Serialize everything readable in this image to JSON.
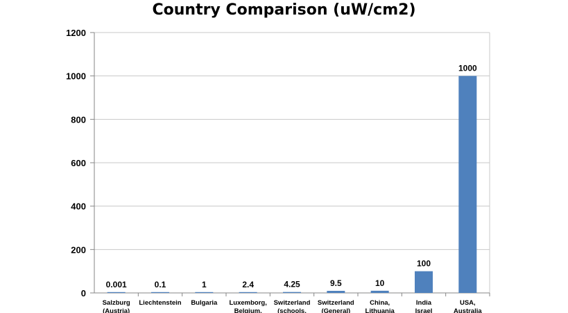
{
  "chart_data": {
    "type": "bar",
    "title": "Country Comparison (uW/cm2)",
    "xlabel": "",
    "ylabel": "",
    "ylim": [
      0,
      1200
    ],
    "yticks": [
      0,
      200,
      400,
      600,
      800,
      1000,
      1200
    ],
    "grid": true,
    "legend": "none",
    "bar_color": "#4f81bd",
    "categories": [
      [
        "Salzburg",
        "(Austria)"
      ],
      [
        "Liechtenstein"
      ],
      [
        "Bulgaria"
      ],
      [
        "Luxemborg,",
        "Belgium,"
      ],
      [
        "Switzerland",
        "(schools,"
      ],
      [
        "Switzerland",
        "(General)"
      ],
      [
        "China,",
        "Lithuania"
      ],
      [
        "India",
        "Israel"
      ],
      [
        "USA,",
        "Australia"
      ]
    ],
    "values": [
      0.001,
      0.1,
      1,
      2.4,
      4.25,
      9.5,
      10,
      100,
      1000
    ],
    "data_labels": [
      "0.001",
      "0.1",
      "1",
      "2.4",
      "4.25",
      "9.5",
      "10",
      "100",
      "1000"
    ]
  }
}
